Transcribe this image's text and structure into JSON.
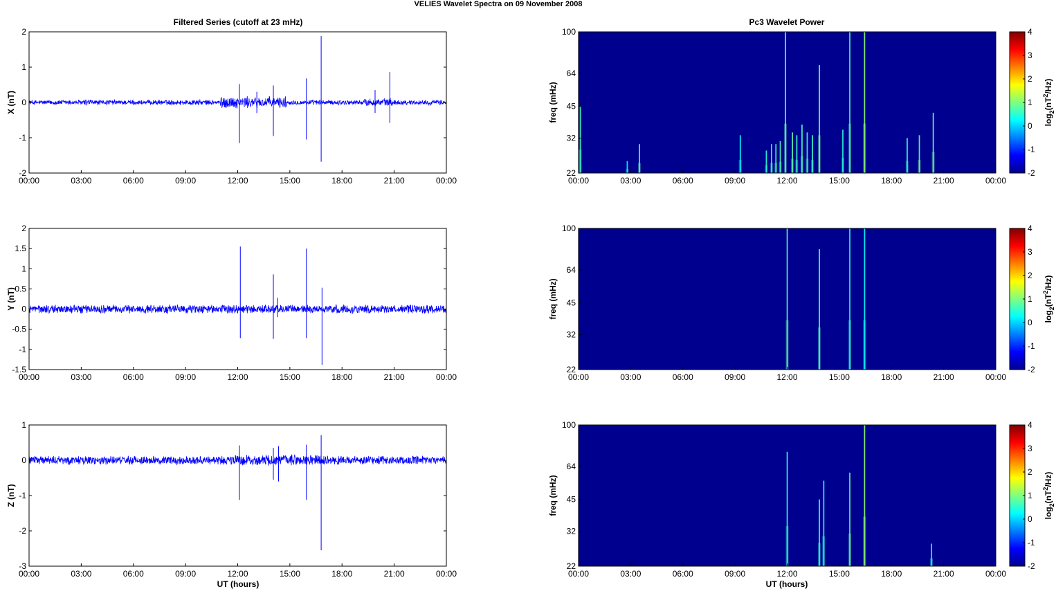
{
  "figure": {
    "title": "VELIES Wavelet Spectra on 09 November  2008",
    "left_title": "Filtered Series (cutoff at 23 mHz)",
    "right_title": "Pc3 Wavelet Power",
    "xlabel": "UT (hours)",
    "time_ticks": [
      "00:00",
      "03:00",
      "06:00",
      "09:00",
      "12:00",
      "15:00",
      "18:00",
      "21:00",
      "00:00"
    ],
    "colors": {
      "series": "#0000ff",
      "background_power": "#00008f"
    }
  },
  "chart_data": [
    {
      "type": "line",
      "component": "X",
      "ylabel": "X (nT)",
      "ylim": [
        -2,
        2
      ],
      "yticks": [
        -2,
        -1,
        0,
        1,
        2
      ],
      "xlim_hours": [
        0,
        24
      ],
      "noise_amplitude": 0.06,
      "bursts": [
        {
          "start": 11.0,
          "end": 14.8,
          "amp": 0.14
        },
        {
          "start": 19.3,
          "end": 20.9,
          "amp": 0.1
        },
        {
          "start": 3.0,
          "end": 3.6,
          "amp": 0.08
        },
        {
          "start": 9.2,
          "end": 10.0,
          "amp": 0.07
        }
      ],
      "spikes": [
        {
          "t": 12.1,
          "max": 0.52,
          "min": -1.15
        },
        {
          "t": 13.1,
          "max": 0.3,
          "min": -0.3
        },
        {
          "t": 14.05,
          "max": 0.48,
          "min": -0.95
        },
        {
          "t": 15.95,
          "max": 0.68,
          "min": -1.05
        },
        {
          "t": 16.8,
          "max": 1.88,
          "min": -1.68
        },
        {
          "t": 19.9,
          "max": 0.35,
          "min": -0.3
        },
        {
          "t": 20.75,
          "max": 0.86,
          "min": -0.58
        }
      ]
    },
    {
      "type": "line",
      "component": "Y",
      "ylabel": "Y (nT)",
      "ylim": [
        -1.5,
        2
      ],
      "yticks": [
        -1.5,
        -1,
        -0.5,
        0,
        0.5,
        1,
        1.5,
        2
      ],
      "xlim_hours": [
        0,
        24
      ],
      "noise_amplitude": 0.09,
      "bursts": [],
      "spikes": [
        {
          "t": 12.15,
          "max": 1.55,
          "min": -0.72
        },
        {
          "t": 14.05,
          "max": 0.86,
          "min": -0.74
        },
        {
          "t": 14.3,
          "max": 0.28,
          "min": -0.2
        },
        {
          "t": 15.95,
          "max": 1.5,
          "min": -0.72
        },
        {
          "t": 16.85,
          "max": 0.53,
          "min": -1.38
        }
      ]
    },
    {
      "type": "line",
      "component": "Z",
      "ylabel": "Z (nT)",
      "ylim": [
        -3,
        1
      ],
      "yticks": [
        -3,
        -2,
        -1,
        0,
        1
      ],
      "xlim_hours": [
        0,
        24
      ],
      "noise_amplitude": 0.1,
      "bursts": [
        {
          "start": 11.5,
          "end": 17.0,
          "amp": 0.13
        }
      ],
      "spikes": [
        {
          "t": 12.1,
          "max": 0.42,
          "min": -1.12
        },
        {
          "t": 14.05,
          "max": 0.35,
          "min": -0.55
        },
        {
          "t": 14.35,
          "max": 0.4,
          "min": -0.6
        },
        {
          "t": 15.95,
          "max": 0.44,
          "min": -1.12
        },
        {
          "t": 16.8,
          "max": 0.71,
          "min": -2.55
        }
      ]
    },
    {
      "type": "heatmap",
      "component": "X",
      "ylabel": "freq (mHz)",
      "yscale": "log",
      "ylim": [
        22,
        100
      ],
      "yticks": [
        22,
        32,
        45,
        64,
        100
      ],
      "xlim_hours": [
        0,
        24
      ],
      "clim": [
        -2,
        4
      ],
      "colorbar_ticks": [
        -2,
        -1,
        0,
        1,
        2,
        3,
        4
      ],
      "colorbar_label": "log2(nT2/Hz)",
      "streaks": [
        {
          "t": 0.1,
          "top": 45,
          "level": 0.6
        },
        {
          "t": 2.8,
          "top": 25,
          "level": 0.3
        },
        {
          "t": 3.5,
          "top": 30,
          "level": 0.8
        },
        {
          "t": 9.3,
          "top": 33,
          "level": 0.3
        },
        {
          "t": 10.8,
          "top": 28,
          "level": 0.5
        },
        {
          "t": 11.1,
          "top": 30,
          "level": 0.6
        },
        {
          "t": 11.35,
          "top": 30,
          "level": 0.7
        },
        {
          "t": 11.6,
          "top": 31,
          "level": 0.7
        },
        {
          "t": 11.9,
          "top": 100,
          "level": 0.8
        },
        {
          "t": 12.3,
          "top": 34,
          "level": 0.8
        },
        {
          "t": 12.55,
          "top": 33,
          "level": 0.6
        },
        {
          "t": 12.85,
          "top": 37,
          "level": 0.7
        },
        {
          "t": 13.15,
          "top": 34,
          "level": 0.7
        },
        {
          "t": 13.45,
          "top": 33,
          "level": 0.6
        },
        {
          "t": 13.85,
          "top": 70,
          "level": 0.9
        },
        {
          "t": 15.2,
          "top": 35,
          "level": 0.5
        },
        {
          "t": 15.6,
          "top": 100,
          "level": 0.7
        },
        {
          "t": 16.45,
          "top": 100,
          "level": 1.1
        },
        {
          "t": 18.9,
          "top": 32,
          "level": 0.6
        },
        {
          "t": 19.6,
          "top": 33,
          "level": 0.9
        },
        {
          "t": 20.4,
          "top": 42,
          "level": 0.9
        }
      ]
    },
    {
      "type": "heatmap",
      "component": "Y",
      "ylabel": "freq (mHz)",
      "yscale": "log",
      "ylim": [
        22,
        100
      ],
      "yticks": [
        22,
        32,
        45,
        64,
        100
      ],
      "xlim_hours": [
        0,
        24
      ],
      "clim": [
        -2,
        4
      ],
      "colorbar_ticks": [
        -2,
        -1,
        0,
        1,
        2,
        3,
        4
      ],
      "colorbar_label": "log2(nT2/Hz)",
      "streaks": [
        {
          "t": 12.0,
          "top": 100,
          "level": 0.8
        },
        {
          "t": 13.85,
          "top": 80,
          "level": 0.7
        },
        {
          "t": 15.6,
          "top": 100,
          "level": 0.5
        },
        {
          "t": 16.45,
          "top": 100,
          "level": 0.3
        }
      ]
    },
    {
      "type": "heatmap",
      "component": "Z",
      "ylabel": "freq (mHz)",
      "yscale": "log",
      "ylim": [
        22,
        100
      ],
      "yticks": [
        22,
        32,
        45,
        64,
        100
      ],
      "xlim_hours": [
        0,
        24
      ],
      "clim": [
        -2,
        4
      ],
      "colorbar_ticks": [
        -2,
        -1,
        0,
        1,
        2,
        3,
        4
      ],
      "colorbar_label": "log2(nT2/Hz)",
      "streaks": [
        {
          "t": 12.0,
          "top": 75,
          "level": 0.6
        },
        {
          "t": 13.85,
          "top": 45,
          "level": 0.5
        },
        {
          "t": 14.1,
          "top": 55,
          "level": 0.5
        },
        {
          "t": 15.6,
          "top": 60,
          "level": 0.8
        },
        {
          "t": 16.45,
          "top": 100,
          "level": 1.1
        },
        {
          "t": 20.3,
          "top": 28,
          "level": 0.4
        }
      ]
    }
  ]
}
